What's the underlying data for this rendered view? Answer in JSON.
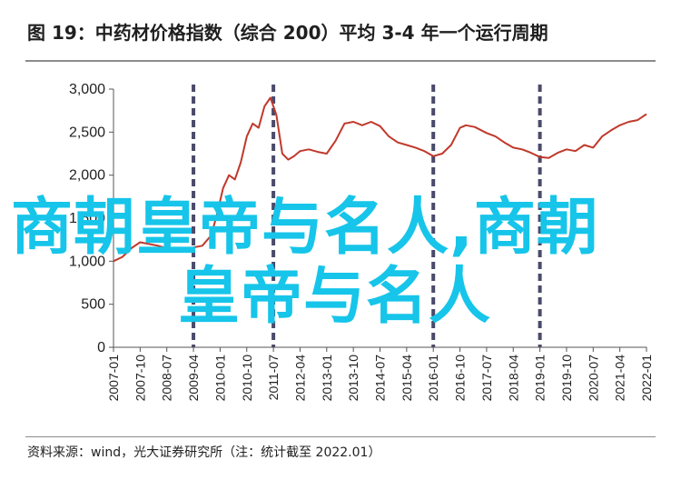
{
  "title": "图 19：中药材价格指数（综合 200）平均 3-4 年一个运行周期",
  "source": "资料来源：wind，光大证券研究所（注：统计截至 2022.01）",
  "watermark": {
    "line1": "商朝皇帝与名人,商朝",
    "line2": "皇帝与名人",
    "color": "#16c5e9"
  },
  "chart_data": {
    "type": "line",
    "title": "图 19：中药材价格指数（综合 200）平均 3-4 年一个运行周期",
    "xlabel": "",
    "ylabel": "",
    "ylim": [
      0,
      3000
    ],
    "y_ticks": [
      0,
      500,
      1000,
      1500,
      2000,
      2500,
      3000
    ],
    "y_tick_labels": [
      "0",
      "500",
      "1,000",
      "1,500",
      "2,000",
      "2,500",
      "3,000"
    ],
    "x_tick_labels": [
      "2007-01",
      "2007-10",
      "2008-07",
      "2009-04",
      "2010-01",
      "2010-10",
      "2011-07",
      "2012-04",
      "2013-01",
      "2013-10",
      "2014-07",
      "2015-04",
      "2016-01",
      "2016-10",
      "2017-07",
      "2018-04",
      "2019-01",
      "2019-10",
      "2020-07",
      "2021-04",
      "2022-01"
    ],
    "grid": false,
    "line_color": "#c0392b",
    "cycle_marker_color": "#4a4a6a",
    "cycle_markers": [
      "2009-04",
      "2011-07",
      "2016-01",
      "2019-01"
    ],
    "series": [
      {
        "values": [
          [
            "2007-01",
            1000
          ],
          [
            "2007-04",
            1050
          ],
          [
            "2007-07",
            1150
          ],
          [
            "2007-10",
            1220
          ],
          [
            "2008-01",
            1200
          ],
          [
            "2008-04",
            1180
          ],
          [
            "2008-07",
            1150
          ],
          [
            "2008-10",
            1130
          ],
          [
            "2009-01",
            1150
          ],
          [
            "2009-04",
            1160
          ],
          [
            "2009-07",
            1180
          ],
          [
            "2009-10",
            1300
          ],
          [
            "2009-12",
            1550
          ],
          [
            "2010-01",
            1700
          ],
          [
            "2010-02",
            1850
          ],
          [
            "2010-04",
            2000
          ],
          [
            "2010-06",
            1950
          ],
          [
            "2010-08",
            2150
          ],
          [
            "2010-10",
            2450
          ],
          [
            "2010-12",
            2600
          ],
          [
            "2011-02",
            2550
          ],
          [
            "2011-04",
            2800
          ],
          [
            "2011-06",
            2900
          ],
          [
            "2011-08",
            2700
          ],
          [
            "2011-10",
            2250
          ],
          [
            "2011-12",
            2180
          ],
          [
            "2012-02",
            2220
          ],
          [
            "2012-04",
            2280
          ],
          [
            "2012-07",
            2300
          ],
          [
            "2012-10",
            2270
          ],
          [
            "2013-01",
            2250
          ],
          [
            "2013-04",
            2400
          ],
          [
            "2013-07",
            2600
          ],
          [
            "2013-10",
            2620
          ],
          [
            "2014-01",
            2580
          ],
          [
            "2014-04",
            2620
          ],
          [
            "2014-07",
            2570
          ],
          [
            "2014-10",
            2450
          ],
          [
            "2015-01",
            2380
          ],
          [
            "2015-04",
            2350
          ],
          [
            "2015-07",
            2320
          ],
          [
            "2015-10",
            2280
          ],
          [
            "2016-01",
            2220
          ],
          [
            "2016-04",
            2250
          ],
          [
            "2016-07",
            2350
          ],
          [
            "2016-10",
            2550
          ],
          [
            "2016-12",
            2580
          ],
          [
            "2017-03",
            2560
          ],
          [
            "2017-07",
            2490
          ],
          [
            "2017-10",
            2450
          ],
          [
            "2018-01",
            2380
          ],
          [
            "2018-04",
            2320
          ],
          [
            "2018-07",
            2300
          ],
          [
            "2018-10",
            2260
          ],
          [
            "2019-01",
            2210
          ],
          [
            "2019-04",
            2200
          ],
          [
            "2019-07",
            2260
          ],
          [
            "2019-10",
            2300
          ],
          [
            "2020-01",
            2280
          ],
          [
            "2020-04",
            2350
          ],
          [
            "2020-07",
            2320
          ],
          [
            "2020-10",
            2450
          ],
          [
            "2021-01",
            2520
          ],
          [
            "2021-04",
            2580
          ],
          [
            "2021-07",
            2620
          ],
          [
            "2021-10",
            2640
          ],
          [
            "2022-01",
            2710
          ]
        ]
      }
    ]
  }
}
